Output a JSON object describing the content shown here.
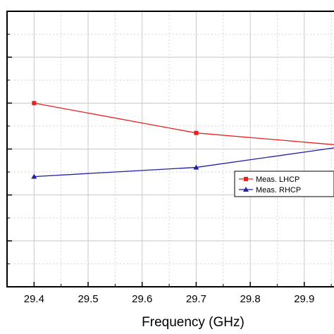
{
  "chart_data": {
    "type": "line",
    "xlabel": "Frequency (GHz)",
    "ylabel": "",
    "x_ticks": [
      "29.4",
      "29.5",
      "29.6",
      "29.7",
      "29.8",
      "29.9"
    ],
    "xlim": [
      29.35,
      29.955
    ],
    "ylim": [
      0,
      12
    ],
    "grid": true,
    "legend_position": "right",
    "series": [
      {
        "name": "Meas. LHCP",
        "color": "#e8201e",
        "marker": "square",
        "x": [
          29.4,
          29.7,
          30.0
        ],
        "y": [
          8.0,
          6.7,
          6.1
        ]
      },
      {
        "name": "Meas. RHCP",
        "color": "#1f1fa8",
        "marker": "triangle",
        "x": [
          29.4,
          29.7,
          30.0
        ],
        "y": [
          4.8,
          5.2,
          6.2
        ]
      }
    ]
  }
}
